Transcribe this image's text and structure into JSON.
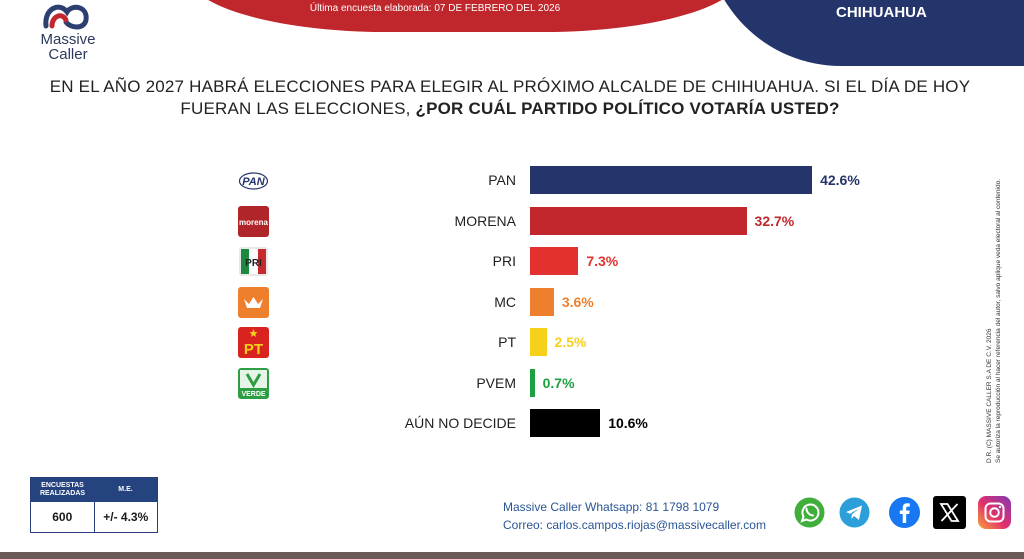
{
  "header": {
    "date_text": "Última encuesta elaborada: 07 DE FEBRERO DEL 2026",
    "region": "CHIHUAHUA"
  },
  "logo": {
    "name": "Massive",
    "sub": "Caller"
  },
  "question": {
    "part1": "EN EL AÑO 2027 HABRÁ ELECCIONES PARA ELEGIR AL PRÓXIMO ALCALDE DE CHIHUAHUA. SI EL DÍA DE HOY FUERAN LAS ELECCIONES, ",
    "part2": "¿POR CUÁL PARTIDO POLÍTICO VOTARÍA USTED?"
  },
  "chart_data": {
    "type": "bar",
    "orientation": "horizontal",
    "categories": [
      "PAN",
      "MORENA",
      "PRI",
      "MC",
      "PT",
      "PVEM",
      "AÚN NO DECIDE"
    ],
    "values": [
      42.6,
      32.7,
      7.3,
      3.6,
      2.5,
      0.7,
      10.6
    ],
    "value_labels": [
      "42.6%",
      "32.7%",
      "7.3%",
      "3.6%",
      "2.5%",
      "0.7%",
      "10.6%"
    ],
    "colors": [
      "#25346b",
      "#c1272d",
      "#e3312f",
      "#ee7f2d",
      "#f5d11c",
      "#1fa040",
      "#000000"
    ],
    "label_colors": [
      "#25346b",
      "#c1272d",
      "#e3312f",
      "#ee7f2d",
      "#f5d11c",
      "#1fa040",
      "#000000"
    ],
    "xlim": [
      0,
      45
    ],
    "title": "",
    "xlabel": "",
    "ylabel": ""
  },
  "party_logos": [
    {
      "icon": "pan-logo-icon",
      "text": "PAN"
    },
    {
      "icon": "morena-logo-icon",
      "text": "morena"
    },
    {
      "icon": "pri-logo-icon",
      "text": "PRI"
    },
    {
      "icon": "mc-logo-icon",
      "text": ""
    },
    {
      "icon": "pt-logo-icon",
      "text": "PT"
    },
    {
      "icon": "pvem-logo-icon",
      "text": "VERDE"
    }
  ],
  "sample": {
    "col1_header": "ENCUESTAS REALIZADAS",
    "col2_header": "M.E.",
    "col1_value": "600",
    "col2_value": "+/- 4.3%"
  },
  "contact": {
    "whatsapp_label": "Massive Caller Whatsapp:",
    "whatsapp_number": "81 1798 1079",
    "email_label": "Correo:",
    "email": "carlos.campos.riojas@massivecaller.com"
  },
  "copyright": {
    "line1": "D.R. (C) MASSIVE CALLER S.A DE C.V. 2026",
    "line2": "Se autoriza la reproducción al hacer referencia del autor, salvo aplique veda electoral al contenido."
  },
  "social_icons": [
    "whatsapp-icon",
    "telegram-icon",
    "facebook-icon",
    "x-icon",
    "instagram-icon"
  ]
}
